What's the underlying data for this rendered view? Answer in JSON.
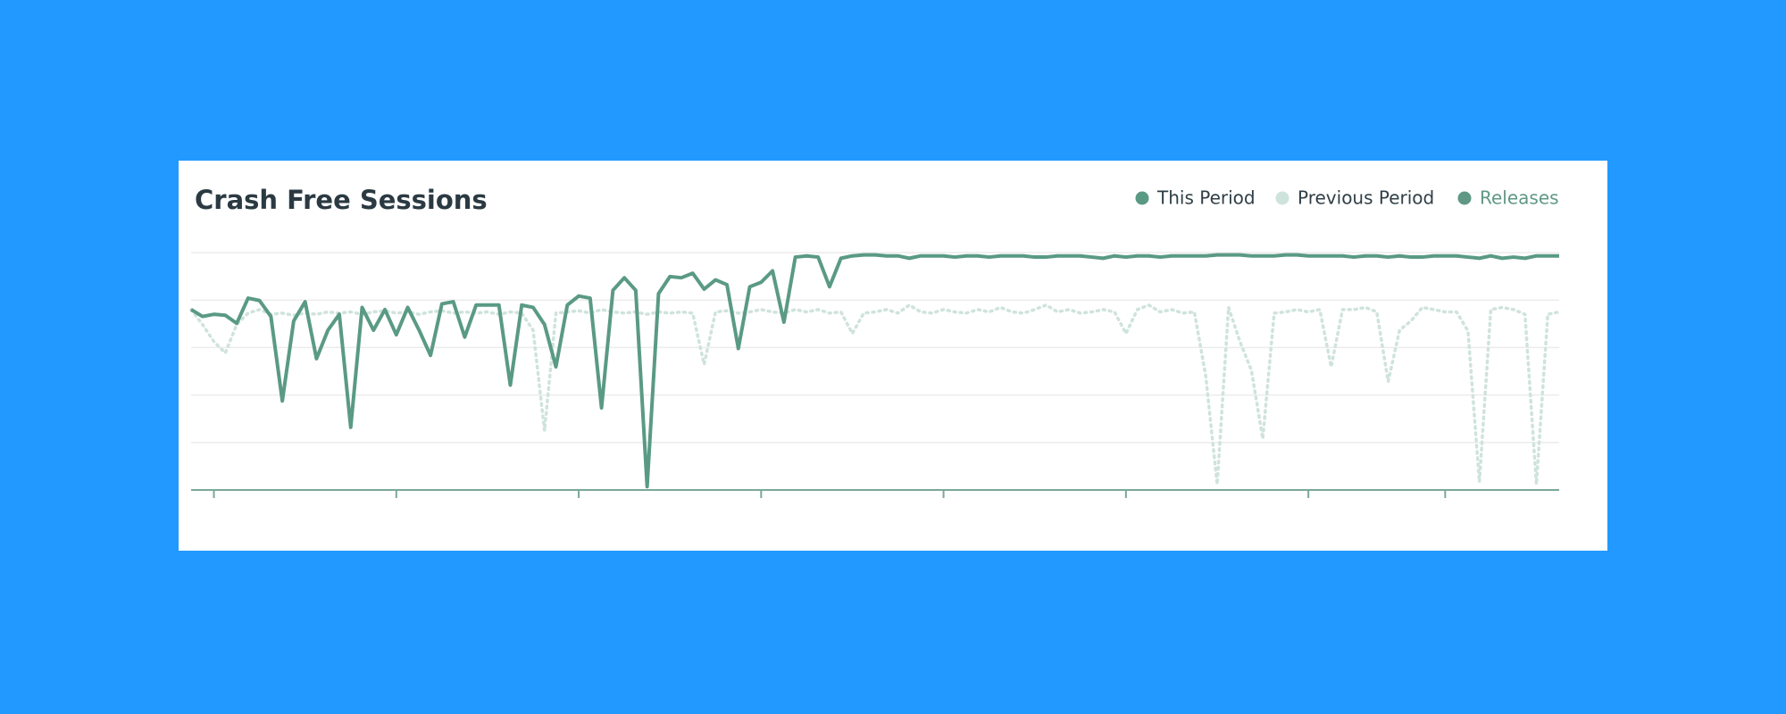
{
  "chart_data": {
    "type": "line",
    "title": "Crash Free Sessions",
    "x": [
      0,
      1,
      2,
      3,
      4,
      5,
      6,
      7,
      8,
      9,
      10,
      11,
      12,
      13,
      14,
      15,
      16,
      17,
      18,
      19,
      20,
      21,
      22,
      23,
      24,
      25,
      26,
      27,
      28,
      29,
      30,
      31,
      32,
      33,
      34,
      35,
      36,
      37,
      38,
      39,
      40,
      41,
      42,
      43,
      44,
      45,
      46,
      47,
      48,
      49,
      50,
      51,
      52,
      53,
      54,
      55,
      56,
      57,
      58,
      59,
      60,
      61,
      62,
      63,
      64,
      65,
      66,
      67,
      68,
      69,
      70,
      71,
      72,
      73,
      74,
      75,
      76,
      77,
      78,
      79,
      80,
      81,
      82,
      83,
      84,
      85,
      86,
      87,
      88,
      89,
      90,
      91,
      92,
      93,
      94,
      95,
      96,
      97,
      98,
      99,
      100,
      101,
      102,
      103,
      104,
      105,
      106,
      107,
      108,
      109,
      110,
      111,
      112,
      113,
      114,
      115,
      116,
      117,
      118,
      119,
      120
    ],
    "series": [
      {
        "name": "This Period",
        "color": "#5a9a84",
        "style": "solid",
        "values": [
          76,
          73.1,
          74,
          73.6,
          70.2,
          80.8,
          79.8,
          73.1,
          37.5,
          71.2,
          79.3,
          55.3,
          67.3,
          74,
          26.4,
          76.9,
          67.3,
          76,
          65.4,
          76.9,
          67.3,
          56.7,
          78.4,
          79.3,
          64.4,
          77.9,
          77.9,
          77.9,
          44.2,
          77.9,
          76.9,
          69.7,
          51.9,
          77.9,
          81.7,
          80.8,
          34.6,
          84.1,
          89.4,
          84.1,
          1.4,
          82.7,
          89.9,
          89.4,
          91.3,
          84.6,
          88.5,
          86.5,
          59.6,
          85.6,
          87.5,
          92.3,
          70.7,
          98.1,
          98.6,
          98.1,
          85.6,
          97.6,
          98.6,
          99,
          99,
          98.6,
          98.6,
          97.6,
          98.6,
          98.6,
          98.6,
          98.1,
          98.6,
          98.6,
          98.1,
          98.6,
          98.6,
          98.6,
          98.1,
          98.1,
          98.6,
          98.6,
          98.6,
          98.1,
          97.6,
          98.6,
          98.1,
          98.6,
          98.6,
          98.1,
          98.6,
          98.6,
          98.6,
          98.6,
          99,
          99,
          99,
          98.6,
          98.6,
          98.6,
          99,
          99,
          98.6,
          98.6,
          98.6,
          98.6,
          98.1,
          98.6,
          98.6,
          98.1,
          98.6,
          98.1,
          98.1,
          98.6,
          98.6,
          98.6,
          98.1,
          97.6,
          98.6,
          97.6,
          98.1,
          97.6,
          98.6,
          98.6,
          98.6
        ]
      },
      {
        "name": "Previous Period",
        "color": "#cfe3dd",
        "style": "dotted",
        "values": [
          76,
          69.7,
          62.5,
          57.7,
          69.7,
          74.5,
          76,
          74,
          74.5,
          73.6,
          74.5,
          74,
          75,
          74.5,
          75,
          74,
          75,
          75.5,
          74.5,
          75,
          74,
          75,
          75.5,
          74.5,
          75,
          74.5,
          75,
          74,
          75,
          74.5,
          67.3,
          25,
          74.5,
          75,
          75.5,
          74.5,
          76,
          75,
          74.5,
          75,
          74,
          75,
          74.5,
          75,
          74.5,
          52.9,
          75,
          75.5,
          74.5,
          75,
          76,
          75,
          74.5,
          76,
          75,
          76,
          74.5,
          75,
          65.9,
          74.5,
          75,
          76,
          74.5,
          77.9,
          75,
          74.5,
          76,
          75,
          74.5,
          76,
          75,
          76.9,
          75,
          74.5,
          76,
          77.9,
          75,
          76,
          74.5,
          75,
          76,
          75,
          65.9,
          76,
          77.9,
          75,
          76,
          74.5,
          75,
          48,
          2.4,
          76.9,
          62.5,
          50.5,
          21.6,
          74.5,
          75,
          76,
          75,
          76,
          51.9,
          76,
          76,
          76.9,
          75,
          45.7,
          67.3,
          71.2,
          76.9,
          76,
          75,
          75,
          67,
          3.4,
          76,
          76.9,
          76,
          74,
          2.4,
          74,
          75
        ]
      }
    ],
    "markers": [
      {
        "name": "Releases",
        "color": "#5f9885"
      }
    ],
    "xlim": [
      0,
      120
    ],
    "xticks": [
      2,
      18,
      34,
      50,
      66,
      82,
      98,
      110
    ],
    "ylim": [
      0,
      100
    ],
    "yticks": [
      0,
      20,
      40,
      60,
      80,
      100
    ],
    "grid": true
  }
}
